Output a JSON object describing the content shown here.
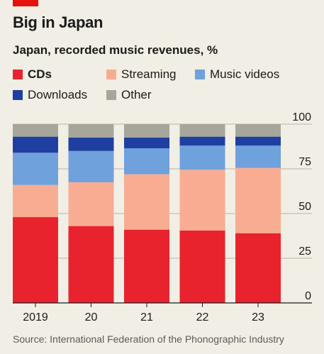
{
  "header": {
    "title": "Big in Japan",
    "subtitle": "Japan, recorded music revenues, %"
  },
  "legend": [
    {
      "label": "CDs",
      "color": "#e8232e",
      "bold": true
    },
    {
      "label": "Streaming",
      "color": "#f8ad93",
      "bold": false
    },
    {
      "label": "Music videos",
      "color": "#6fa1dc",
      "bold": false
    },
    {
      "label": "Downloads",
      "color": "#1f3fa0",
      "bold": false
    },
    {
      "label": "Other",
      "color": "#a6a69a",
      "bold": false
    }
  ],
  "chart_data": {
    "type": "bar",
    "stacked": true,
    "categories": [
      "2019",
      "20",
      "21",
      "22",
      "23"
    ],
    "series": [
      {
        "name": "CDs",
        "color": "#e8232e",
        "values": [
          48,
          43,
          41,
          40.5,
          39
        ]
      },
      {
        "name": "Streaming",
        "color": "#f8ad93",
        "values": [
          18,
          24.5,
          31,
          34,
          36.5
        ]
      },
      {
        "name": "Music videos",
        "color": "#6fa1dc",
        "values": [
          18,
          17.5,
          14.5,
          13.5,
          12.5
        ]
      },
      {
        "name": "Downloads",
        "color": "#1f3fa0",
        "values": [
          9,
          7.5,
          6,
          5,
          5
        ]
      },
      {
        "name": "Other",
        "color": "#a6a69a",
        "values": [
          7,
          7.5,
          7.5,
          7,
          7
        ]
      }
    ],
    "ylim": [
      0,
      100
    ],
    "yticks": [
      0,
      25,
      50,
      75,
      100
    ],
    "y_axis_side": "right",
    "grid": true,
    "legend_position": "top"
  },
  "footer": {
    "source": "Source: International Federation of the Phonographic Industry"
  }
}
